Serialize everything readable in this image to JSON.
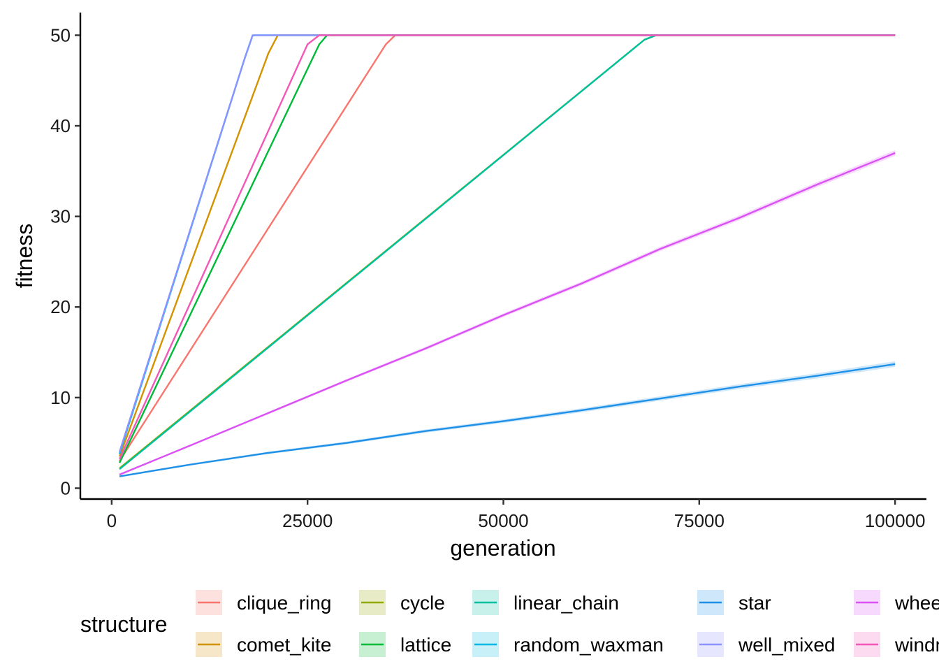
{
  "chart_data": {
    "type": "line",
    "title": "",
    "xlabel": "generation",
    "ylabel": "fitness",
    "xlim": [
      -4000,
      104000
    ],
    "ylim": [
      -1.2,
      52.5
    ],
    "x_ticks": [
      0,
      25000,
      50000,
      75000,
      100000
    ],
    "x_tick_labels": [
      "0",
      "25000",
      "50000",
      "75000",
      "100000"
    ],
    "y_ticks": [
      0,
      10,
      20,
      30,
      40,
      50
    ],
    "y_tick_labels": [
      "0",
      "10",
      "20",
      "30",
      "40",
      "50"
    ],
    "grid": false,
    "legend": {
      "title": "structure",
      "position": "bottom"
    },
    "series": [
      {
        "name": "clique_ring",
        "color": "#F8766D",
        "ribbon": false,
        "x": [
          1000,
          35000,
          36200,
          100000
        ],
        "y": [
          3.0,
          49.0,
          50.0,
          50.0
        ]
      },
      {
        "name": "comet_kite",
        "color": "#D39200",
        "ribbon": false,
        "x": [
          1000,
          20000,
          21200,
          100000
        ],
        "y": [
          3.5,
          48.0,
          50.0,
          50.0
        ]
      },
      {
        "name": "cycle",
        "color": "#93AA00",
        "ribbon": false,
        "x": [
          1000,
          68000,
          69500,
          100000
        ],
        "y": [
          2.2,
          49.5,
          50.0,
          50.0
        ]
      },
      {
        "name": "lattice",
        "color": "#00BA38",
        "ribbon": false,
        "x": [
          1000,
          26500,
          27500,
          100000
        ],
        "y": [
          2.8,
          49.0,
          50.0,
          50.0
        ]
      },
      {
        "name": "linear_chain",
        "color": "#00C19F",
        "ribbon": false,
        "x": [
          1000,
          68000,
          69500,
          100000
        ],
        "y": [
          2.1,
          49.5,
          50.0,
          50.0
        ]
      },
      {
        "name": "random_waxman",
        "color": "#00B9E3",
        "ribbon": false,
        "x": [
          1000,
          17000,
          18000,
          100000
        ],
        "y": [
          3.8,
          47.5,
          50.0,
          50.0
        ]
      },
      {
        "name": "star",
        "color": "#1E90E8",
        "ribbon": true,
        "x": [
          1000,
          10000,
          20000,
          30000,
          40000,
          50000,
          60000,
          70000,
          80000,
          90000,
          100000
        ],
        "y": [
          1.3,
          2.6,
          3.9,
          5.0,
          6.3,
          7.4,
          8.6,
          9.9,
          11.2,
          12.4,
          13.7
        ]
      },
      {
        "name": "well_mixed",
        "color": "#8B93FF",
        "ribbon": false,
        "x": [
          1000,
          17000,
          18000,
          100000
        ],
        "y": [
          4.0,
          47.5,
          50.0,
          50.0
        ]
      },
      {
        "name": "wheel",
        "color": "#DB52F4",
        "ribbon": true,
        "x": [
          1000,
          10000,
          20000,
          30000,
          40000,
          50000,
          60000,
          70000,
          80000,
          90000,
          100000
        ],
        "y": [
          1.5,
          4.7,
          8.3,
          11.9,
          15.4,
          19.1,
          22.6,
          26.4,
          29.8,
          33.5,
          37.0
        ]
      },
      {
        "name": "windmill",
        "color": "#F357B8",
        "ribbon": false,
        "x": [
          1000,
          25000,
          26500,
          100000
        ],
        "y": [
          3.2,
          49.0,
          50.0,
          50.0
        ]
      }
    ]
  }
}
